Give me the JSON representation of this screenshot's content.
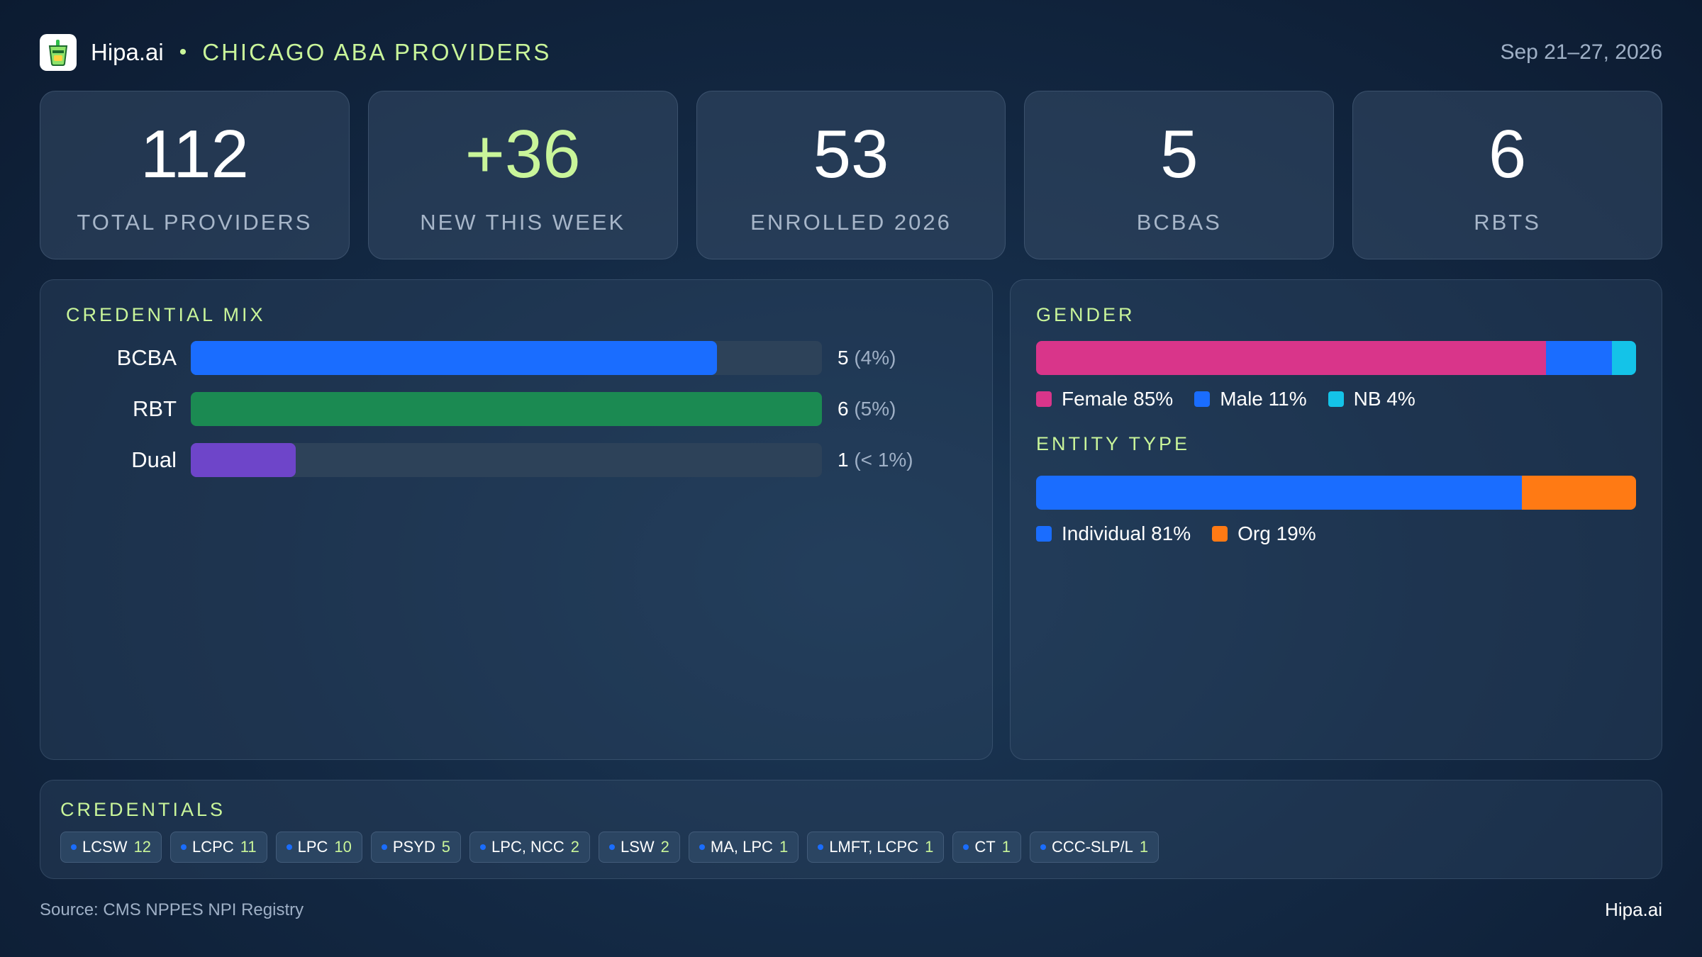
{
  "header": {
    "brand": "Hipa.ai",
    "subtitle": "CHICAGO ABA PROVIDERS",
    "date": "Sep 21–27, 2026",
    "logo_icon": "cup-icon"
  },
  "kpis": [
    {
      "value": "112",
      "label": "TOTAL PROVIDERS"
    },
    {
      "value": "+36",
      "label": "NEW THIS WEEK"
    },
    {
      "value": "53",
      "label": "ENROLLED 2026"
    },
    {
      "value": "5",
      "label": "BCBAS"
    },
    {
      "value": "6",
      "label": "RBTS"
    }
  ],
  "colors": {
    "accent": "#c9f59a",
    "blue": "#1a6dff",
    "green": "#1b8a52",
    "purple": "#6e45c9",
    "pink": "#d9358a",
    "cyan": "#14c3e8",
    "orange": "#ff7a14"
  },
  "credential_mix": {
    "title": "CREDENTIAL MIX",
    "max": 6,
    "rows": [
      {
        "label": "BCBA",
        "value": 5,
        "count": "5",
        "pct": "(4%)",
        "color": "#1a6dff"
      },
      {
        "label": "RBT",
        "value": 6,
        "count": "6",
        "pct": "(5%)",
        "color": "#1b8a52"
      },
      {
        "label": "Dual",
        "value": 1,
        "count": "1",
        "pct": "(< 1%)",
        "color": "#6e45c9"
      }
    ]
  },
  "gender": {
    "title": "GENDER",
    "segments": [
      {
        "label": "Female 85%",
        "value": 85,
        "color": "#d9358a"
      },
      {
        "label": "Male 11%",
        "value": 11,
        "color": "#1a6dff"
      },
      {
        "label": "NB 4%",
        "value": 4,
        "color": "#14c3e8"
      }
    ]
  },
  "entity_type": {
    "title": "ENTITY TYPE",
    "segments": [
      {
        "label": "Individual 81%",
        "value": 81,
        "color": "#1a6dff"
      },
      {
        "label": "Org 19%",
        "value": 19,
        "color": "#ff7a14"
      }
    ]
  },
  "credentials": {
    "title": "CREDENTIALS",
    "chips": [
      {
        "name": "LCSW",
        "count": "12"
      },
      {
        "name": "LCPC",
        "count": "11"
      },
      {
        "name": "LPC",
        "count": "10"
      },
      {
        "name": "PSYD",
        "count": "5"
      },
      {
        "name": "LPC, NCC",
        "count": "2"
      },
      {
        "name": "LSW",
        "count": "2"
      },
      {
        "name": "MA, LPC",
        "count": "1"
      },
      {
        "name": "LMFT, LCPC",
        "count": "1"
      },
      {
        "name": "CT",
        "count": "1"
      },
      {
        "name": "CCC-SLP/L",
        "count": "1"
      }
    ]
  },
  "footer": {
    "source": "Source: CMS NPPES NPI Registry",
    "brand": "Hipa.ai"
  },
  "chart_data": [
    {
      "type": "bar",
      "title": "CREDENTIAL MIX",
      "categories": [
        "BCBA",
        "RBT",
        "Dual"
      ],
      "values": [
        5,
        6,
        1
      ],
      "labels": [
        "5 (4%)",
        "6 (5%)",
        "1 (< 1%)"
      ]
    },
    {
      "type": "bar",
      "title": "GENDER",
      "categories": [
        "Female",
        "Male",
        "NB"
      ],
      "values": [
        85,
        11,
        4
      ]
    },
    {
      "type": "bar",
      "title": "ENTITY TYPE",
      "categories": [
        "Individual",
        "Org"
      ],
      "values": [
        81,
        19
      ]
    }
  ]
}
